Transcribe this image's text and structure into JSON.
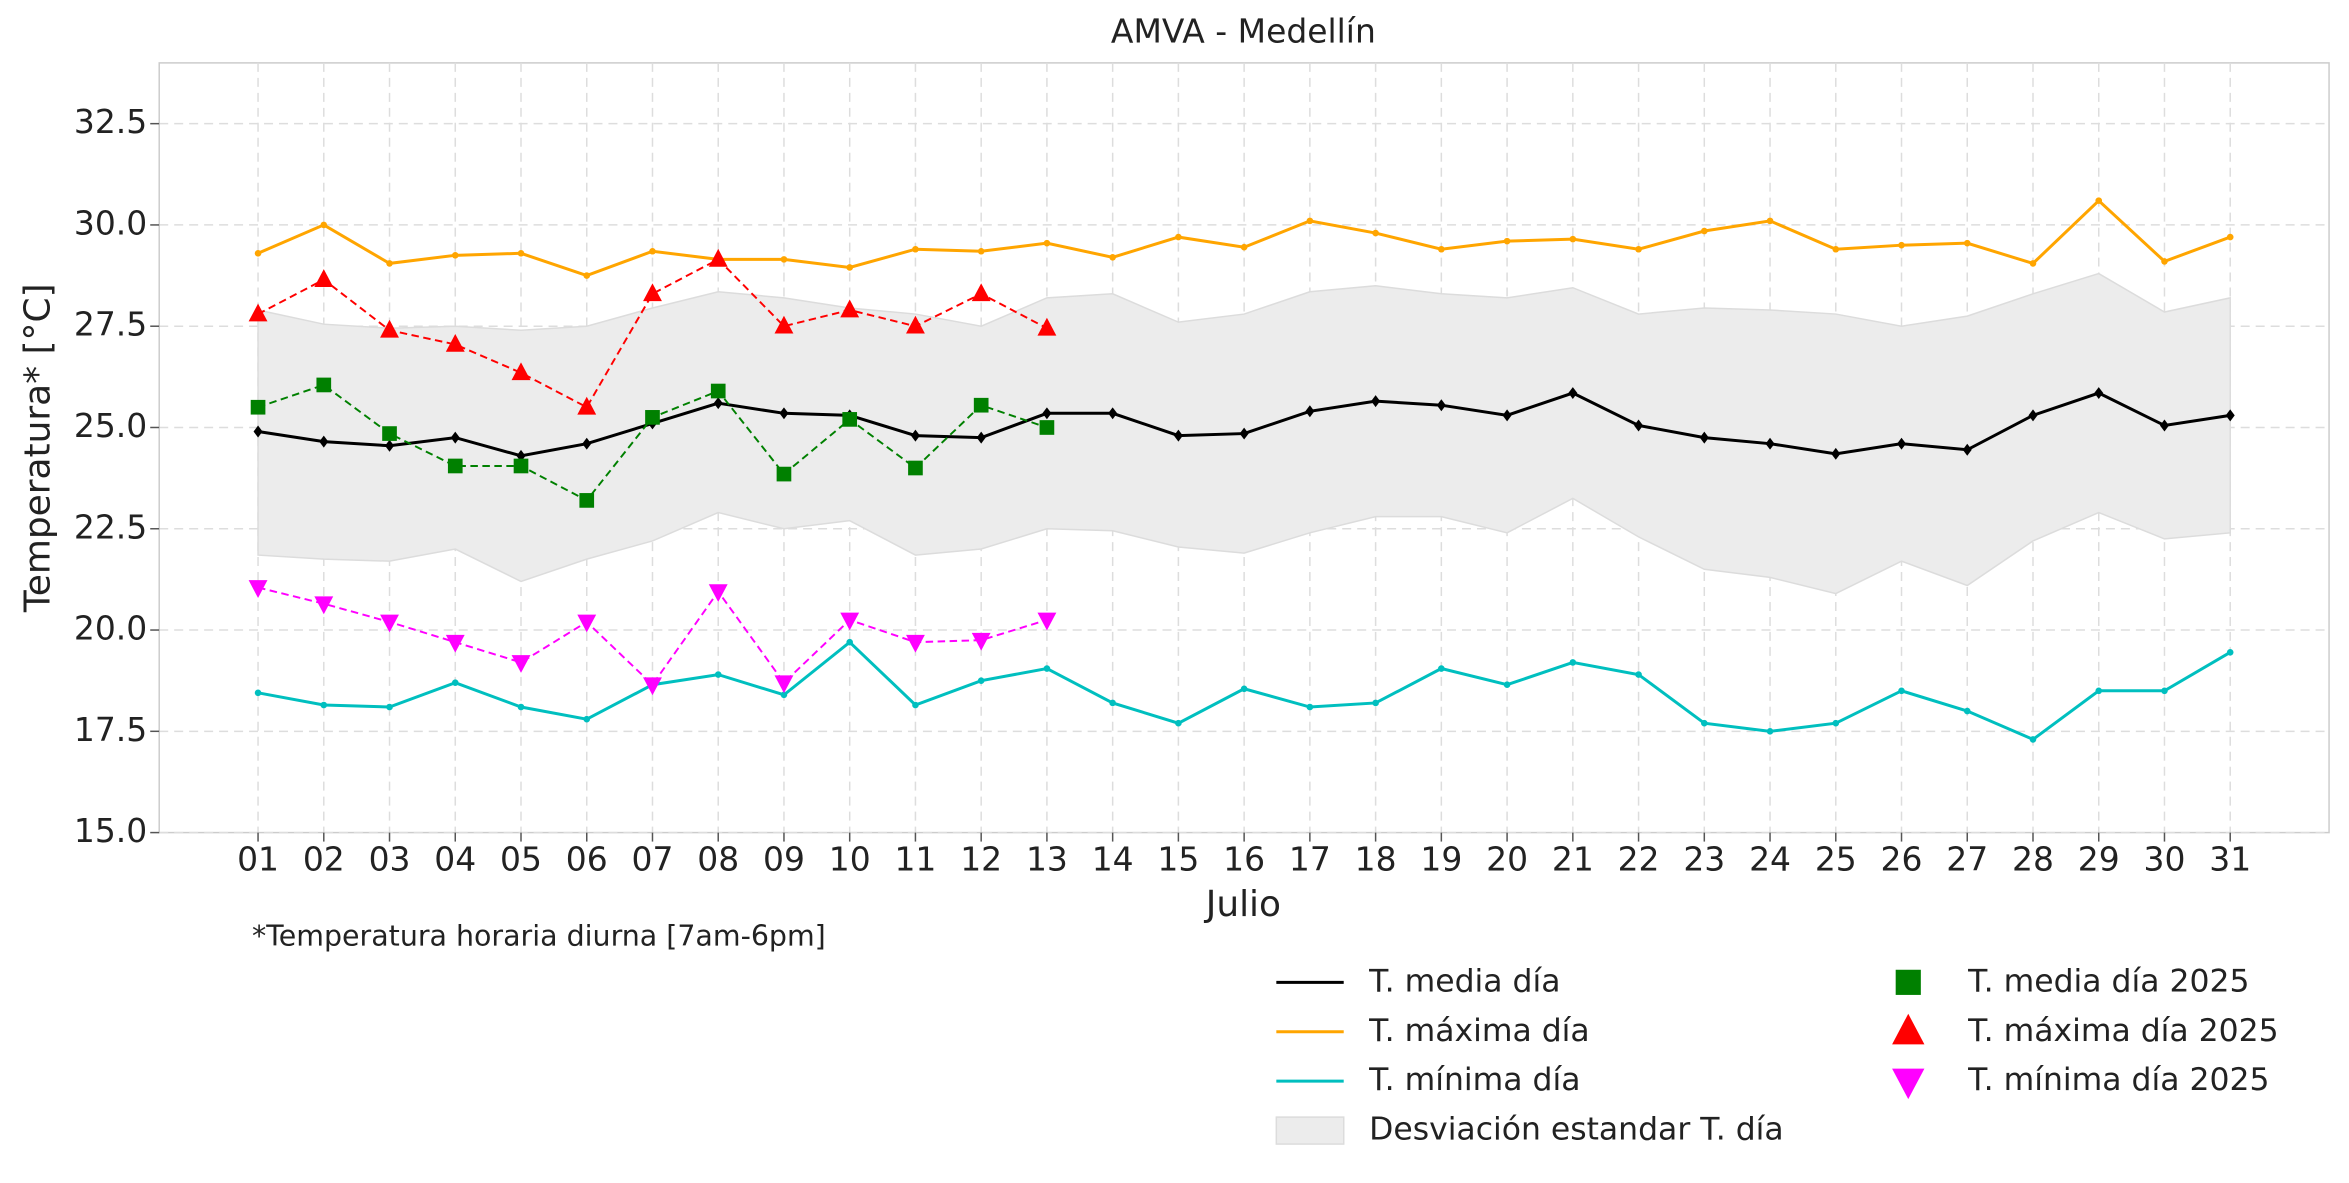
{
  "chart_data": {
    "type": "line",
    "title": "AMVA - Medellín",
    "xlabel": "Julio",
    "ylabel": "Temperatura* [°C]",
    "note": "*Temperatura horaria diurna [7am-6pm]",
    "categories": [
      "01",
      "02",
      "03",
      "04",
      "05",
      "06",
      "07",
      "08",
      "09",
      "10",
      "11",
      "12",
      "13",
      "14",
      "15",
      "16",
      "17",
      "18",
      "19",
      "20",
      "21",
      "22",
      "23",
      "24",
      "25",
      "26",
      "27",
      "28",
      "29",
      "30",
      "31"
    ],
    "ylim": [
      15,
      34
    ],
    "yticks": [
      {
        "value": 15,
        "label": "15.0"
      },
      17.5,
      {
        "value": 20,
        "label": "20.0"
      },
      22.5,
      {
        "value": 25,
        "label": "25.0"
      },
      27.5,
      {
        "value": 30,
        "label": "30.0"
      },
      32.5
    ],
    "grid": true,
    "series": [
      {
        "name": "T. media día",
        "color": "#000000",
        "marker": "D",
        "linestyle": "solid",
        "values": [
          24.9,
          24.65,
          24.55,
          24.75,
          24.3,
          24.6,
          25.1,
          25.6,
          25.35,
          25.3,
          24.8,
          24.75,
          25.35,
          25.35,
          24.8,
          24.85,
          25.4,
          25.65,
          25.55,
          25.3,
          25.85,
          25.05,
          24.75,
          24.6,
          24.35,
          24.6,
          24.45,
          25.3,
          25.85,
          25.05,
          25.3
        ]
      },
      {
        "name": "T. máxima día",
        "color": "#ffa500",
        "marker": "o",
        "linestyle": "solid",
        "values": [
          29.3,
          30.0,
          29.05,
          29.25,
          29.3,
          28.75,
          29.35,
          29.15,
          29.15,
          28.95,
          29.4,
          29.35,
          29.55,
          29.2,
          29.7,
          29.45,
          30.1,
          29.8,
          29.4,
          29.6,
          29.65,
          29.4,
          29.85,
          30.1,
          29.4,
          29.5,
          29.55,
          29.05,
          30.6,
          29.1,
          29.7
        ]
      },
      {
        "name": "T. mínima día",
        "color": "#00bfbf",
        "marker": "o",
        "linestyle": "solid",
        "values": [
          18.45,
          18.15,
          18.1,
          18.7,
          18.1,
          17.8,
          18.65,
          18.9,
          18.4,
          19.7,
          18.15,
          18.75,
          19.05,
          18.2,
          17.7,
          18.55,
          18.1,
          18.2,
          19.05,
          18.65,
          19.2,
          18.9,
          17.7,
          17.5,
          17.7,
          18.5,
          18.0,
          17.3,
          18.5,
          18.5,
          19.45
        ]
      },
      {
        "name": "Desviación estandar T. día",
        "color": "#ececec",
        "type": "band",
        "upper": [
          27.9,
          27.55,
          27.45,
          27.5,
          27.4,
          27.5,
          27.95,
          28.35,
          28.2,
          27.95,
          27.8,
          27.5,
          28.2,
          28.3,
          27.6,
          27.8,
          28.35,
          28.5,
          28.3,
          28.2,
          28.45,
          27.8,
          27.95,
          27.9,
          27.8,
          27.5,
          27.75,
          28.3,
          28.8,
          27.85,
          28.2
        ],
        "lower": [
          21.85,
          21.75,
          21.7,
          22.0,
          21.2,
          21.75,
          22.2,
          22.9,
          22.5,
          22.7,
          21.85,
          22.0,
          22.5,
          22.45,
          22.05,
          21.9,
          22.4,
          22.8,
          22.8,
          22.4,
          23.25,
          22.3,
          21.5,
          21.3,
          20.9,
          21.7,
          21.1,
          22.2,
          22.9,
          22.25,
          22.4
        ]
      },
      {
        "name": "T. media día 2025",
        "color": "#008000",
        "marker": "s",
        "linestyle": "dashed",
        "values": [
          25.5,
          26.05,
          24.85,
          24.05,
          24.05,
          23.2,
          25.25,
          25.9,
          23.85,
          25.2,
          24.0,
          25.55,
          25.0,
          null,
          null,
          null,
          null,
          null,
          null,
          null,
          null,
          null,
          null,
          null,
          null,
          null,
          null,
          null,
          null,
          null,
          null
        ]
      },
      {
        "name": "T. máxima día 2025",
        "color": "#ff0000",
        "marker": "^",
        "linestyle": "dashed",
        "values": [
          27.8,
          28.65,
          27.4,
          27.05,
          26.35,
          25.5,
          28.3,
          29.15,
          27.5,
          27.9,
          27.5,
          28.3,
          27.45,
          null,
          null,
          null,
          null,
          null,
          null,
          null,
          null,
          null,
          null,
          null,
          null,
          null,
          null,
          null,
          null,
          null,
          null
        ]
      },
      {
        "name": "T. mínima día 2025",
        "color": "#ff00ff",
        "marker": "v",
        "linestyle": "dashed",
        "values": [
          21.05,
          20.65,
          20.2,
          19.7,
          19.2,
          20.2,
          18.65,
          20.95,
          18.7,
          20.25,
          19.7,
          19.75,
          20.25,
          null,
          null,
          null,
          null,
          null,
          null,
          null,
          null,
          null,
          null,
          null,
          null,
          null,
          null,
          null,
          null,
          null,
          null
        ]
      }
    ]
  }
}
